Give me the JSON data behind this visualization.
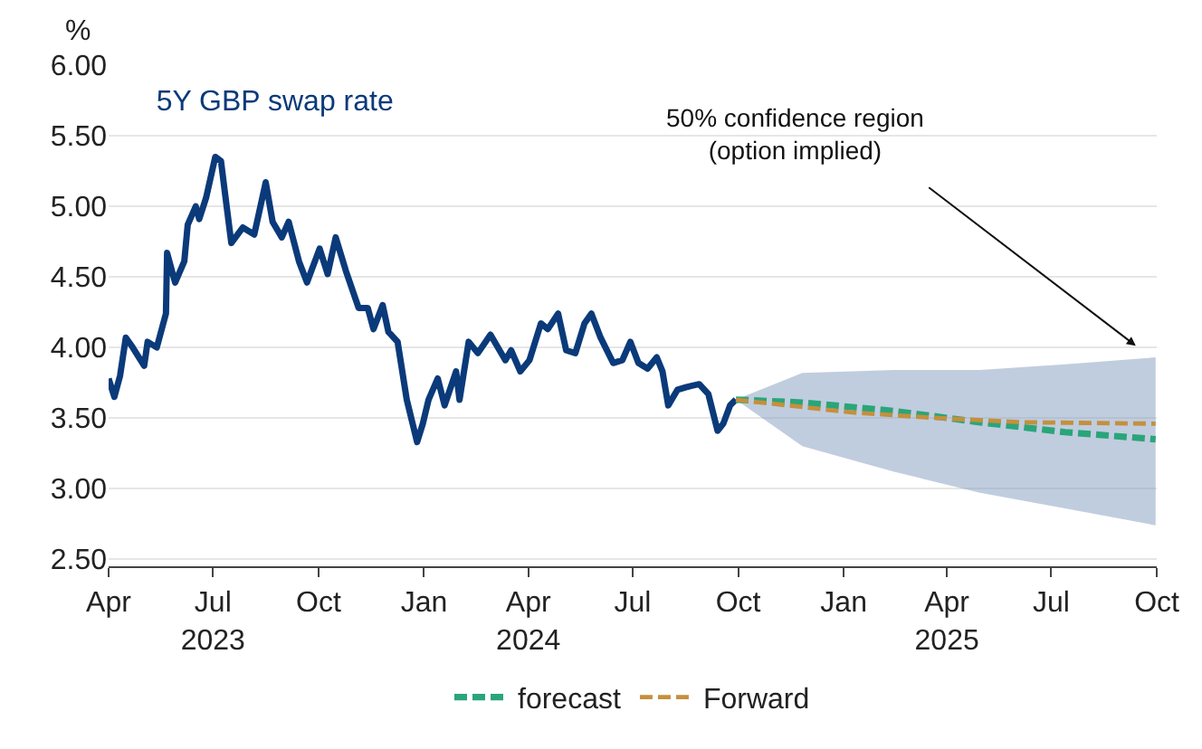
{
  "chart_data": {
    "type": "line",
    "title": "5Y GBP swap rate",
    "ylabel": "%",
    "series": [
      {
        "name": null,
        "color": "#0b3a7a",
        "line_style": "solid",
        "x": [
          "2023-04-01",
          "2023-04-06",
          "2023-04-11",
          "2023-04-16",
          "2023-04-22",
          "2023-05-02",
          "2023-05-05",
          "2023-05-13",
          "2023-05-21",
          "2023-05-22",
          "2023-05-29",
          "2023-06-06",
          "2023-06-09",
          "2023-06-16",
          "2023-06-19",
          "2023-06-25",
          "2023-07-03",
          "2023-07-08",
          "2023-07-12",
          "2023-07-17",
          "2023-07-27",
          "2023-08-06",
          "2023-08-16",
          "2023-08-22",
          "2023-08-30",
          "2023-09-05",
          "2023-09-14",
          "2023-09-21",
          "2023-10-02",
          "2023-10-09",
          "2023-10-16",
          "2023-10-25",
          "2023-11-05",
          "2023-11-13",
          "2023-11-18",
          "2023-11-26",
          "2023-12-01",
          "2023-12-09",
          "2023-12-17",
          "2023-12-26",
          "2023-12-31",
          "2024-01-05",
          "2024-01-13",
          "2024-01-19",
          "2024-01-29",
          "2024-02-01",
          "2024-02-09",
          "2024-02-17",
          "2024-02-28",
          "2024-03-12",
          "2024-03-17",
          "2024-03-25",
          "2024-04-02",
          "2024-04-12",
          "2024-04-18",
          "2024-04-27",
          "2024-05-04",
          "2024-05-12",
          "2024-05-20",
          "2024-05-26",
          "2024-06-03",
          "2024-06-14",
          "2024-06-22",
          "2024-06-29",
          "2024-07-06",
          "2024-07-14",
          "2024-07-22",
          "2024-07-27",
          "2024-08-01",
          "2024-08-09",
          "2024-08-17",
          "2024-08-28",
          "2024-09-05",
          "2024-09-13",
          "2024-09-18",
          "2024-09-24",
          "2024-09-29"
        ],
        "values": [
          3.78,
          3.65,
          3.8,
          4.07,
          4.0,
          3.87,
          4.04,
          4.0,
          4.24,
          4.67,
          4.46,
          4.61,
          4.87,
          5.0,
          4.91,
          5.06,
          5.35,
          5.32,
          5.06,
          4.74,
          4.85,
          4.8,
          5.17,
          4.89,
          4.78,
          4.89,
          4.61,
          4.46,
          4.7,
          4.52,
          4.78,
          4.54,
          4.28,
          4.28,
          4.13,
          4.3,
          4.11,
          4.04,
          3.63,
          3.33,
          3.46,
          3.63,
          3.78,
          3.59,
          3.83,
          3.63,
          4.04,
          3.96,
          4.09,
          3.91,
          3.98,
          3.83,
          3.91,
          4.17,
          4.13,
          4.24,
          3.98,
          3.96,
          4.17,
          4.24,
          4.07,
          3.89,
          3.91,
          4.04,
          3.89,
          3.85,
          3.93,
          3.83,
          3.59,
          3.7,
          3.72,
          3.74,
          3.67,
          3.41,
          3.46,
          3.59,
          3.63
        ]
      },
      {
        "name": "forecast",
        "color": "#2aa57a",
        "line_style": "dashed",
        "x": [
          "2024-09-29",
          "2024-11-26",
          "2025-02-14",
          "2025-04-30",
          "2025-07-13",
          "2025-09-30"
        ],
        "values": [
          3.63,
          3.61,
          3.55,
          3.47,
          3.4,
          3.35
        ],
        "lower": [
          3.63,
          3.3,
          3.12,
          2.97,
          2.86,
          2.74
        ],
        "upper": [
          3.63,
          3.82,
          3.84,
          3.84,
          3.88,
          3.93
        ]
      },
      {
        "name": "Forward",
        "color": "#c4903e",
        "line_style": "dashed",
        "x": [
          "2024-09-29",
          "2025-01-08",
          "2025-03-23",
          "2025-06-06",
          "2025-09-30"
        ],
        "values": [
          3.63,
          3.54,
          3.5,
          3.47,
          3.46
        ]
      }
    ],
    "annotations": [
      "50% confidence region\n(option implied)"
    ],
    "xlim": [
      "2023-04-01",
      "2025-10-01"
    ],
    "xticks": [
      {
        "value": "2023-04-01",
        "label": "Apr"
      },
      {
        "value": "2023-07-01",
        "label": "Jul\n2023"
      },
      {
        "value": "2023-10-01",
        "label": "Oct"
      },
      {
        "value": "2024-01-01",
        "label": "Jan"
      },
      {
        "value": "2024-04-01",
        "label": "Apr\n2024"
      },
      {
        "value": "2024-07-01",
        "label": "Jul"
      },
      {
        "value": "2024-10-01",
        "label": "Oct"
      },
      {
        "value": "2025-01-01",
        "label": "Jan"
      },
      {
        "value": "2025-04-01",
        "label": "Apr\n2025"
      },
      {
        "value": "2025-07-01",
        "label": "Jul"
      },
      {
        "value": "2025-10-01",
        "label": "Oct"
      }
    ],
    "ylim": [
      2.45,
      6.0
    ],
    "yticks": [
      {
        "value": 2.5,
        "label": "2.50"
      },
      {
        "value": 3.0,
        "label": "3.00"
      },
      {
        "value": 3.5,
        "label": "3.50"
      },
      {
        "value": 4.0,
        "label": "4.00"
      },
      {
        "value": 4.5,
        "label": "4.50"
      },
      {
        "value": 5.0,
        "label": "5.00"
      },
      {
        "value": 5.5,
        "label": "5.50"
      },
      {
        "value": 6.0,
        "label": "6.00"
      }
    ],
    "grid": "y",
    "legend": "bottom",
    "marker": "none"
  }
}
